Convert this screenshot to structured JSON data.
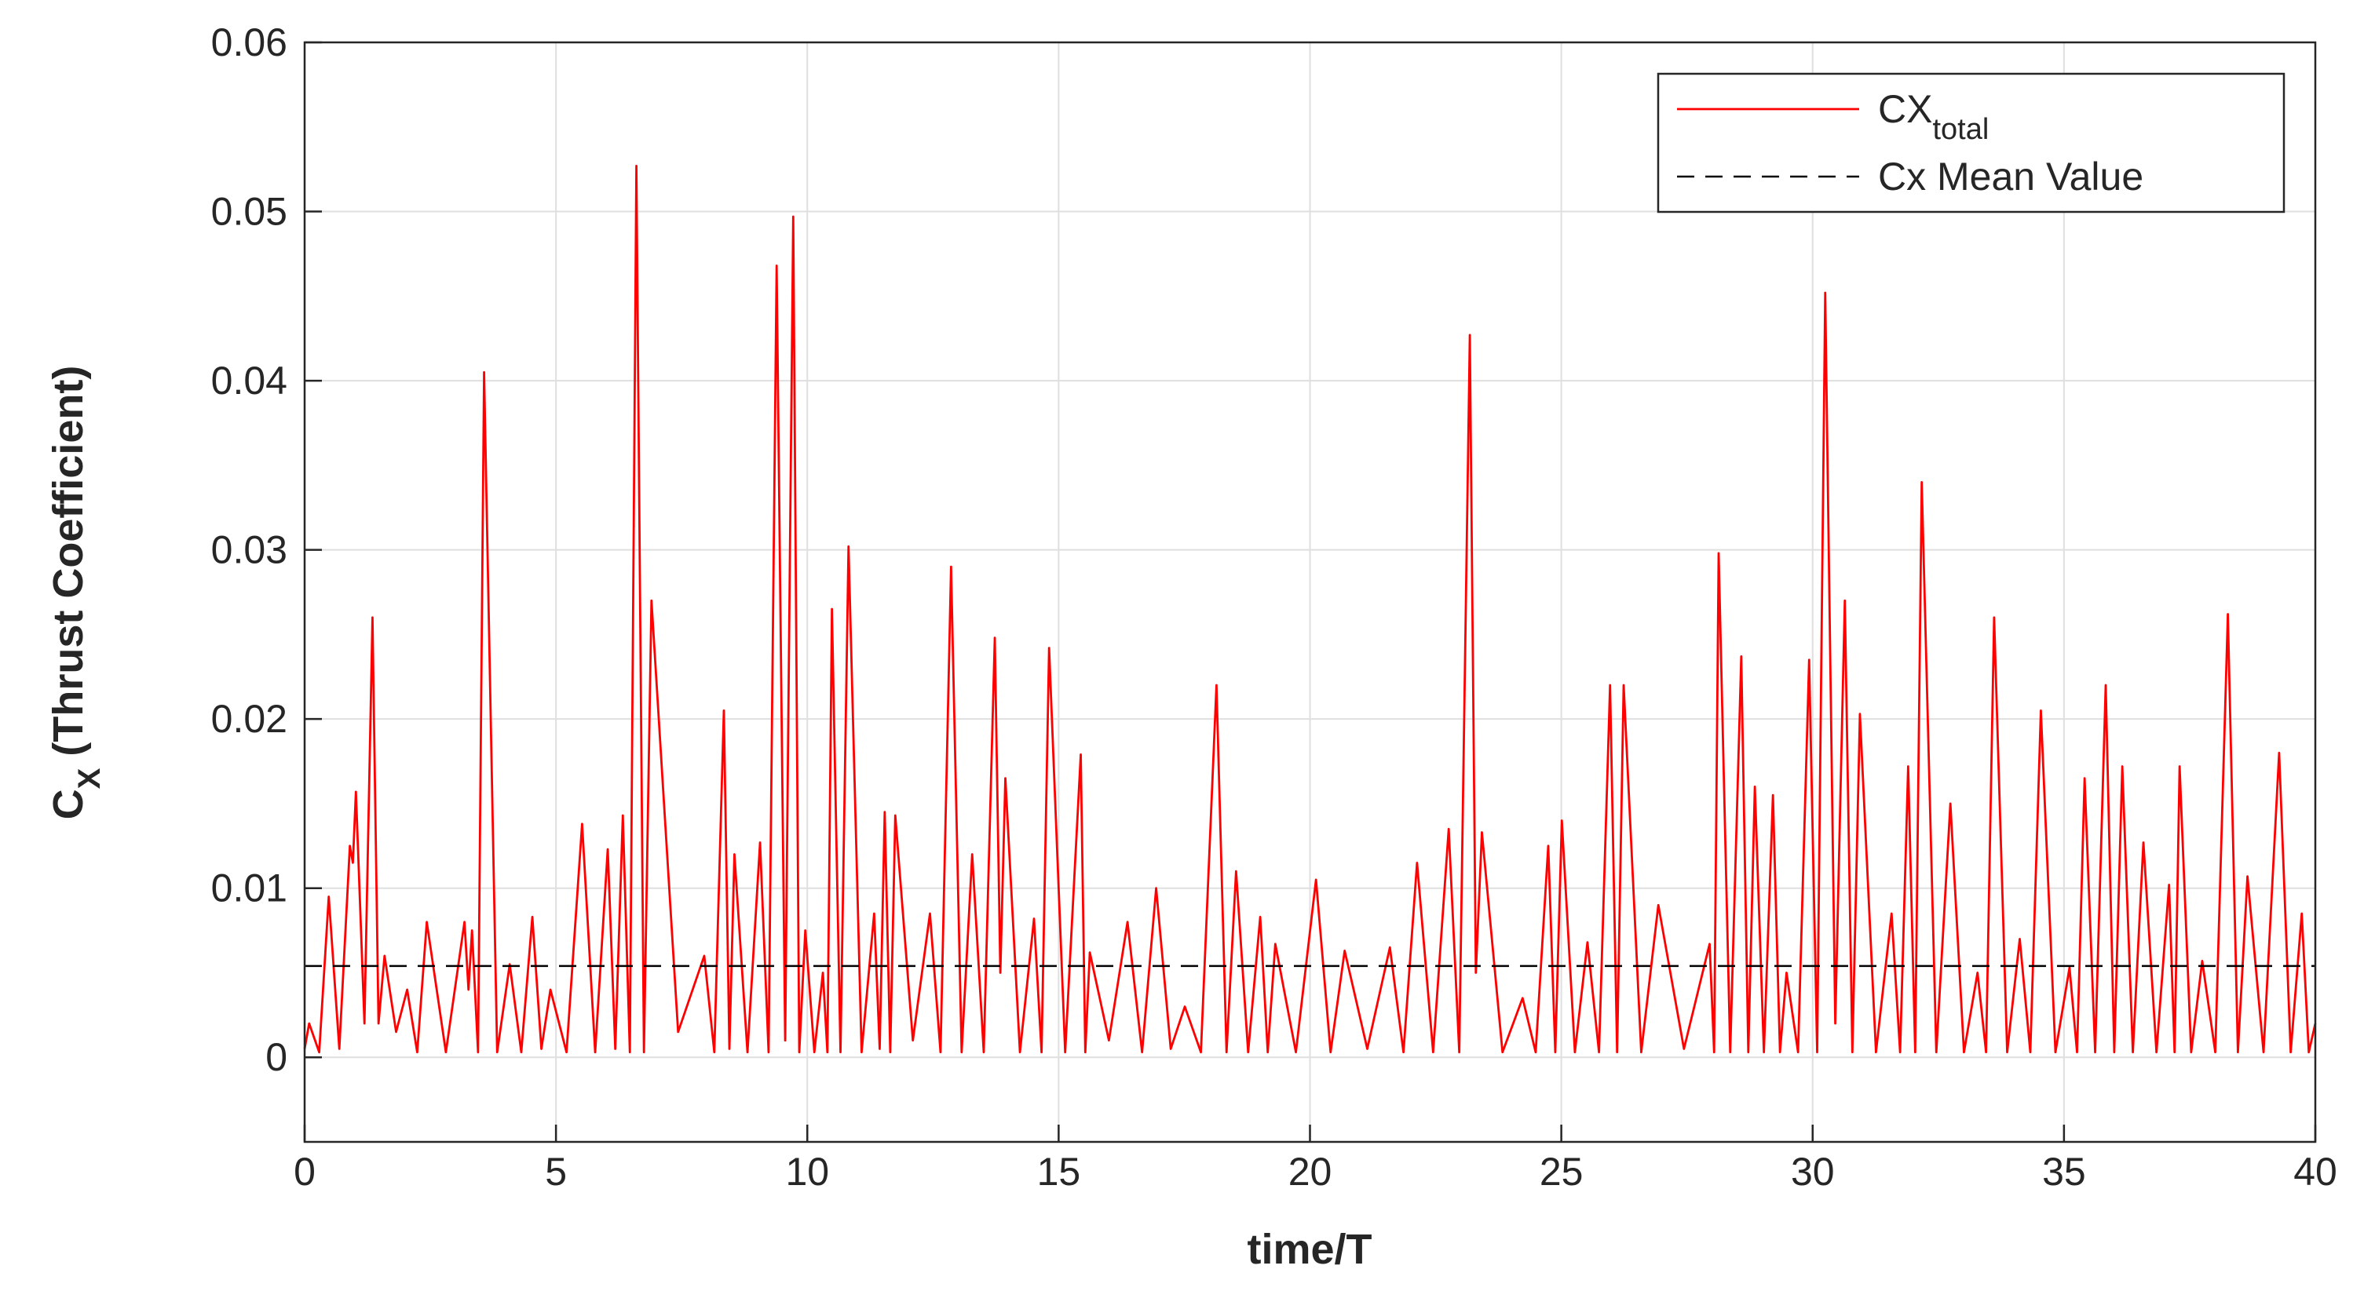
{
  "chart_data": {
    "type": "line",
    "xlabel": "time/T",
    "ylabel": "C",
    "ylabel_subscript": "X",
    "ylabel_suffix": " (Thrust Coefficient)",
    "xlim": [
      0,
      40
    ],
    "ylim": [
      -0.005,
      0.06
    ],
    "xticks": [
      0,
      5,
      10,
      15,
      20,
      25,
      30,
      35,
      40
    ],
    "yticks": [
      0,
      0.01,
      0.02,
      0.03,
      0.04,
      0.05,
      0.06
    ],
    "grid": true,
    "legend": "northeast",
    "series": [
      {
        "name": "CX",
        "subscript": "total",
        "color": "#ff0000",
        "dash": false,
        "x": [
          0,
          0.09,
          0.29,
          0.48,
          0.69,
          0.9,
          0.96,
          1.02,
          1.19,
          1.35,
          1.47,
          1.59,
          1.82,
          2.04,
          2.24,
          2.43,
          2.81,
          3.18,
          3.26,
          3.33,
          3.45,
          3.57,
          3.83,
          4.08,
          4.31,
          4.53,
          4.71,
          4.89,
          5.21,
          5.52,
          5.78,
          6.03,
          6.18,
          6.33,
          6.47,
          6.6,
          6.75,
          6.9,
          7.43,
          7.95,
          8.15,
          8.34,
          8.45,
          8.55,
          8.81,
          9.06,
          9.23,
          9.39,
          9.56,
          9.72,
          9.84,
          9.96,
          10.14,
          10.31,
          10.4,
          10.49,
          10.66,
          10.82,
          11.08,
          11.33,
          11.44,
          11.54,
          11.65,
          11.75,
          12.1,
          12.44,
          12.65,
          12.86,
          13.07,
          13.28,
          13.51,
          13.73,
          13.84,
          13.94,
          14.23,
          14.51,
          14.66,
          14.81,
          15.13,
          15.44,
          15.53,
          15.62,
          16.0,
          16.37,
          16.66,
          16.94,
          17.23,
          17.51,
          17.83,
          18.14,
          18.34,
          18.53,
          18.77,
          19.01,
          19.16,
          19.31,
          19.72,
          20.12,
          20.41,
          20.69,
          21.14,
          21.59,
          21.86,
          22.13,
          22.45,
          22.76,
          22.97,
          23.18,
          23.3,
          23.42,
          23.83,
          24.23,
          24.49,
          24.74,
          24.88,
          25.01,
          25.27,
          25.52,
          25.75,
          25.97,
          26.11,
          26.24,
          26.59,
          26.93,
          27.44,
          27.95,
          28.04,
          28.13,
          28.36,
          28.58,
          28.72,
          28.85,
          29.03,
          29.21,
          29.35,
          29.48,
          29.71,
          29.93,
          30.09,
          30.25,
          30.45,
          30.64,
          30.79,
          30.94,
          31.26,
          31.57,
          31.74,
          31.9,
          32.04,
          32.17,
          32.46,
          32.74,
          33.01,
          33.28,
          33.45,
          33.61,
          33.87,
          34.12,
          34.33,
          34.54,
          34.83,
          35.11,
          35.26,
          35.41,
          35.62,
          35.83,
          36.0,
          36.16,
          36.37,
          36.58,
          36.84,
          37.09,
          37.2,
          37.3,
          37.53,
          37.75,
          38.01,
          38.26,
          38.46,
          38.65,
          38.97,
          39.28,
          39.51,
          39.73,
          39.87,
          40.0
        ],
        "values": [
          0.0005,
          0.002,
          0.0003,
          0.0095,
          0.0005,
          0.0125,
          0.0115,
          0.0157,
          0.002,
          0.026,
          0.002,
          0.006,
          0.0015,
          0.004,
          0.0003,
          0.008,
          0.0003,
          0.008,
          0.004,
          0.0075,
          0.0003,
          0.0405,
          0.0003,
          0.0055,
          0.0003,
          0.0083,
          0.0005,
          0.004,
          0.0003,
          0.0138,
          0.0003,
          0.0123,
          0.0005,
          0.0143,
          0.0003,
          0.0527,
          0.0003,
          0.027,
          0.0015,
          0.006,
          0.0003,
          0.0205,
          0.0005,
          0.012,
          0.0003,
          0.0127,
          0.0003,
          0.0468,
          0.001,
          0.0497,
          0.0003,
          0.0075,
          0.0003,
          0.005,
          0.0003,
          0.0265,
          0.0003,
          0.0302,
          0.0003,
          0.0085,
          0.0005,
          0.0145,
          0.0003,
          0.0143,
          0.001,
          0.0085,
          0.0003,
          0.029,
          0.0003,
          0.012,
          0.0003,
          0.0248,
          0.005,
          0.0165,
          0.0003,
          0.0082,
          0.0003,
          0.0242,
          0.0003,
          0.0179,
          0.0003,
          0.0062,
          0.001,
          0.008,
          0.0003,
          0.01,
          0.0005,
          0.003,
          0.0003,
          0.022,
          0.0003,
          0.011,
          0.0003,
          0.0083,
          0.0003,
          0.0067,
          0.0003,
          0.0105,
          0.0003,
          0.0063,
          0.0005,
          0.0065,
          0.0003,
          0.0115,
          0.0003,
          0.0135,
          0.0003,
          0.0427,
          0.005,
          0.0133,
          0.0003,
          0.0035,
          0.0003,
          0.0125,
          0.0003,
          0.014,
          0.0003,
          0.0068,
          0.0003,
          0.022,
          0.0003,
          0.022,
          0.0003,
          0.009,
          0.0005,
          0.0067,
          0.0003,
          0.0298,
          0.0003,
          0.0237,
          0.0003,
          0.016,
          0.0003,
          0.0155,
          0.0003,
          0.005,
          0.0003,
          0.0235,
          0.0003,
          0.0452,
          0.002,
          0.027,
          0.0003,
          0.0203,
          0.0003,
          0.0085,
          0.0003,
          0.0172,
          0.0003,
          0.034,
          0.0003,
          0.015,
          0.0003,
          0.005,
          0.0003,
          0.026,
          0.0003,
          0.007,
          0.0003,
          0.0205,
          0.0003,
          0.0053,
          0.0003,
          0.0165,
          0.0003,
          0.022,
          0.0003,
          0.0172,
          0.0003,
          0.0127,
          0.0003,
          0.0102,
          0.0003,
          0.0172,
          0.0003,
          0.0057,
          0.0003,
          0.0262,
          0.0003,
          0.0107,
          0.0003,
          0.018,
          0.0003,
          0.0085,
          0.0003,
          0.002
        ]
      },
      {
        "name": "Cx Mean Value",
        "color": "#000000",
        "dash": true,
        "x": [
          0,
          40
        ],
        "values": [
          0.0054,
          0.0054
        ]
      }
    ]
  }
}
